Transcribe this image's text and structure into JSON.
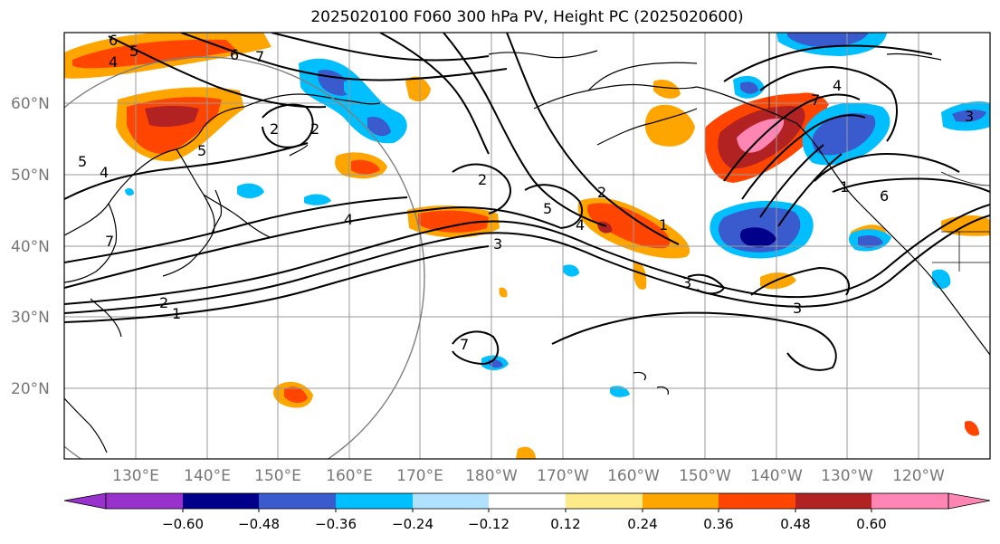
{
  "title": "2025020100 F060 300 hPa PV, Height PC (2025020600)",
  "lat_labels": [
    "60°N",
    "50°N",
    "40°N",
    "30°N",
    "20°N"
  ],
  "lon_labels": [
    "130°E",
    "140°E",
    "150°E",
    "160°E",
    "170°E",
    "180°W",
    "170°W",
    "160°W",
    "150°W",
    "140°W",
    "130°W",
    "120°W"
  ],
  "colorbar": {
    "colors": [
      "#9932CC",
      "#00008B",
      "#3A5BCD",
      "#00BFFF",
      "#B0E2FF",
      "#FFFFFF",
      "#FFEA8A",
      "#FFA500",
      "#FF4500",
      "#B22222",
      "#FF85B4"
    ],
    "ticks": [
      "−0.60",
      "−0.48",
      "−0.36",
      "−0.24",
      "−0.12",
      "0.12",
      "0.24",
      "0.36",
      "0.48",
      "0.60"
    ]
  },
  "contour_labels": [
    "6",
    "5",
    "4",
    "7",
    "6",
    "2",
    "2",
    "5",
    "4",
    "7",
    "5",
    "2",
    "5",
    "4",
    "2",
    "3",
    "2",
    "1",
    "3",
    "1",
    "1",
    "4",
    "7",
    "6",
    "3",
    "3",
    "7",
    "4"
  ]
}
